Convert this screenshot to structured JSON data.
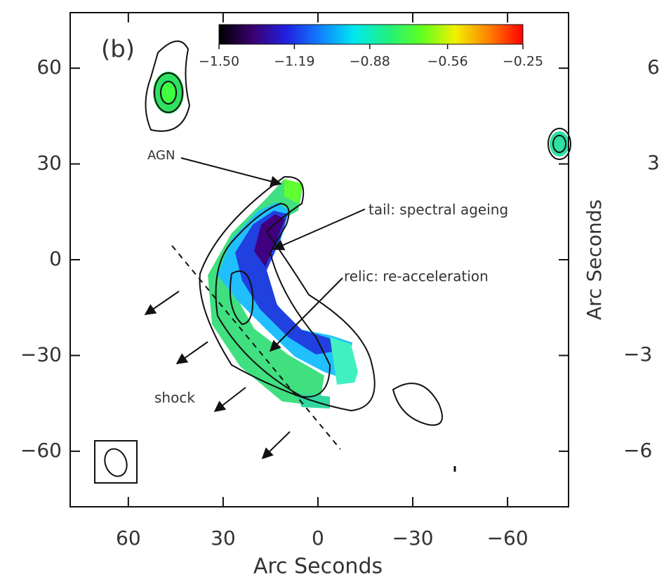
{
  "chart_data": {
    "type": "image",
    "panel_label": "(b)",
    "x_label": "Arc Seconds",
    "xlim": [
      78.4,
      -79.3
    ],
    "ylim": [
      -77.4,
      77.4
    ],
    "xticks": [
      60,
      30,
      0,
      {
        "value": -30,
        "label": "−30"
      },
      {
        "value": -60,
        "label": "−60"
      }
    ],
    "yticks": [
      60,
      30,
      0,
      {
        "value": -30,
        "label": "−30"
      },
      {
        "value": -60,
        "label": "−60"
      }
    ],
    "colorbar": {
      "lim": [
        -1.5,
        -0.25
      ],
      "ticks": [
        {
          "value": -1.5,
          "label": "−1.50"
        },
        {
          "value": -1.19,
          "label": "−1.19"
        },
        {
          "value": -0.88,
          "label": "−0.88"
        },
        {
          "value": -0.56,
          "label": "−0.56"
        },
        {
          "value": -0.25,
          "label": "−0.25"
        }
      ],
      "colors": [
        "#000000",
        "#3a0070",
        "#2020e0",
        "#1080ff",
        "#00e8f0",
        "#20f080",
        "#60ff20",
        "#f0f000",
        "#ff8000",
        "#ff0000"
      ]
    },
    "annotations": [
      "AGN",
      "tail: spectral ageing",
      "relic: re-acceleration",
      "shock"
    ],
    "right_panel": {
      "y_label": "Arc Seconds",
      "tick_labels": [
        "6",
        "3",
        "−3",
        "−6"
      ]
    }
  }
}
